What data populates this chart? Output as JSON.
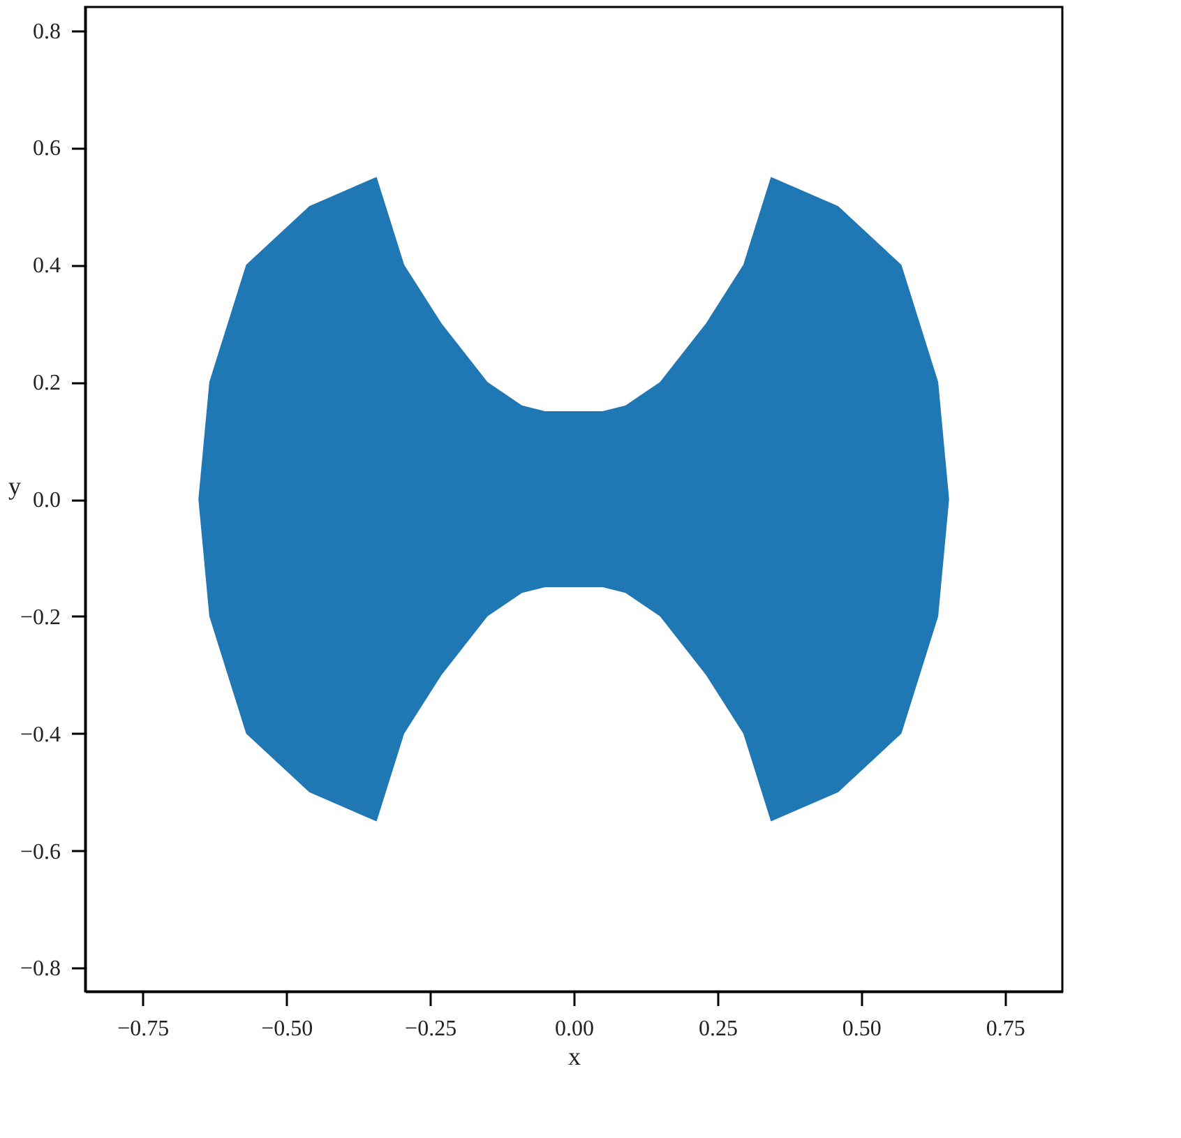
{
  "chart_data": {
    "type": "area",
    "xlabel": "x",
    "ylabel": "y",
    "x": [
      -0.653,
      -0.634,
      -0.57,
      -0.46,
      -0.343,
      -0.295,
      -0.23,
      -0.15,
      -0.09,
      -0.05,
      0.0,
      0.05,
      0.09,
      0.15,
      0.23,
      0.295,
      0.343,
      0.46,
      0.57,
      0.634,
      0.653
    ],
    "series": [
      {
        "color": "#1f77b4",
        "values": [
          0.0,
          0.2,
          0.4,
          0.5,
          0.55,
          0.4,
          0.3,
          0.2,
          0.16,
          0.15,
          0.15,
          0.15,
          0.16,
          0.2,
          0.3,
          0.4,
          0.55,
          0.5,
          0.4,
          0.2,
          0.0
        ]
      },
      {
        "color": "#1f77b4",
        "values": [
          0.0,
          -0.2,
          -0.4,
          -0.5,
          -0.55,
          -0.4,
          -0.3,
          -0.2,
          -0.16,
          -0.15,
          -0.15,
          -0.15,
          -0.16,
          -0.2,
          -0.3,
          -0.4,
          -0.55,
          -0.5,
          -0.4,
          -0.2,
          0.0
        ]
      }
    ],
    "xlim": [
      -0.85,
      0.85
    ],
    "ylim": [
      -0.84,
      0.84
    ],
    "xticks": [
      {
        "value": -0.75,
        "label": "−0.75"
      },
      {
        "value": -0.5,
        "label": "−0.50"
      },
      {
        "value": -0.25,
        "label": "−0.25"
      },
      {
        "value": 0,
        "label": "0.00"
      },
      {
        "value": 0.25,
        "label": "0.25"
      },
      {
        "value": 0.5,
        "label": "0.50"
      },
      {
        "value": 0.75,
        "label": "0.75"
      }
    ],
    "yticks": [
      {
        "value": -0.8,
        "label": "−0.8"
      },
      {
        "value": -0.6,
        "label": "−0.6"
      },
      {
        "value": -0.4,
        "label": "−0.4"
      },
      {
        "value": -0.2,
        "label": "−0.2"
      },
      {
        "value": 0,
        "label": "0.0"
      },
      {
        "value": 0.2,
        "label": "0.2"
      },
      {
        "value": 0.4,
        "label": "0.4"
      },
      {
        "value": 0.6,
        "label": "0.6"
      },
      {
        "value": 0.8,
        "label": "0.8"
      }
    ],
    "grid": false
  }
}
